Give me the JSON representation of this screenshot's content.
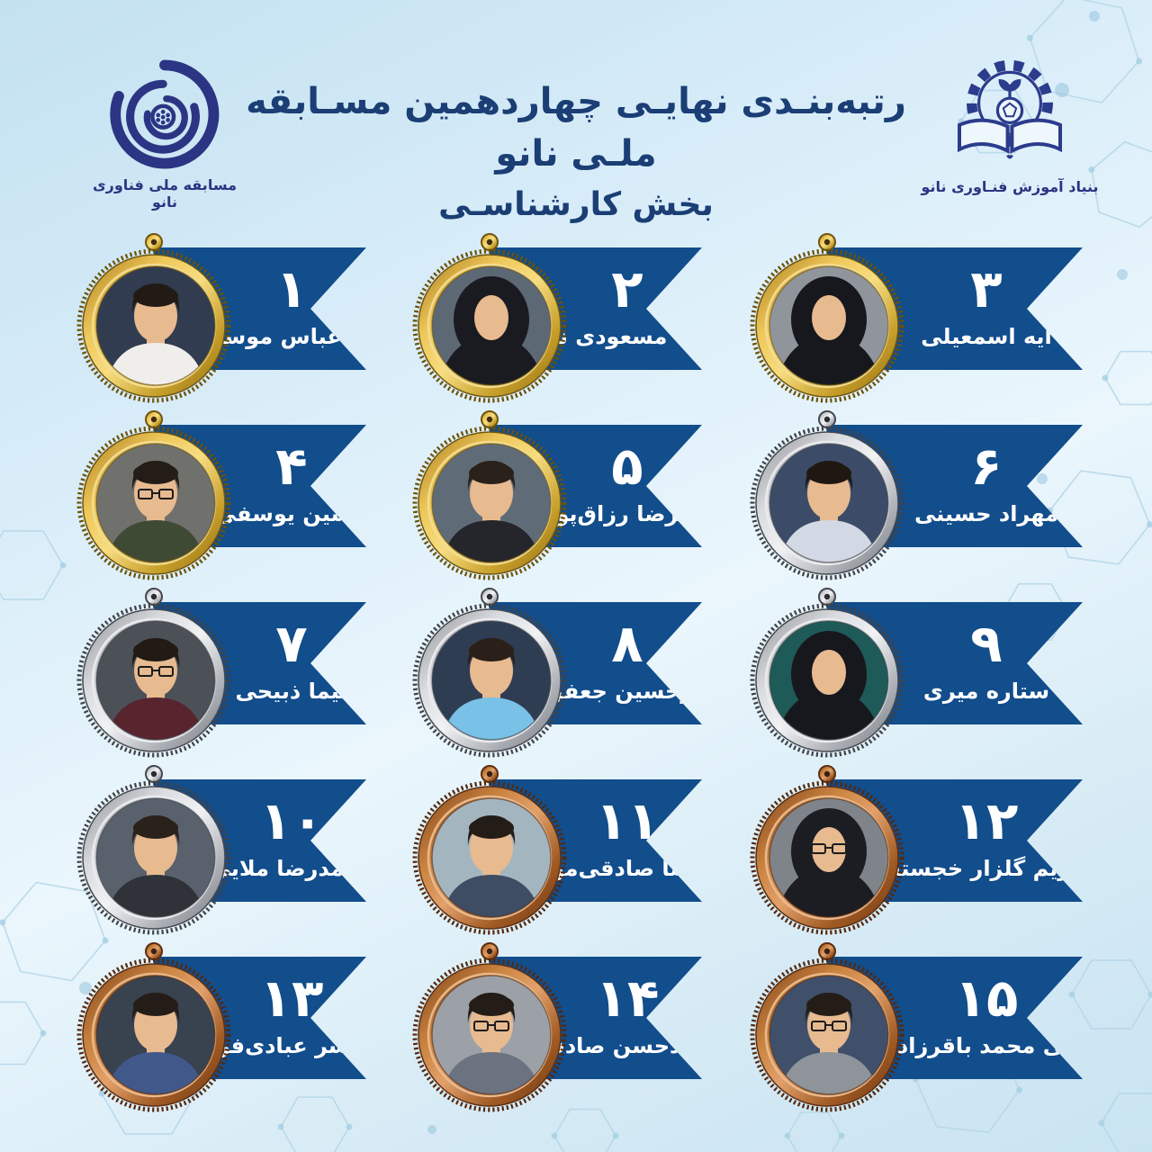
{
  "header": {
    "title_line1": "رتبه‌بنـدی نهایـی چهاردهمین مسـابقه ملـی نانو",
    "title_line2": "بخش کارشناسـی",
    "left_logo_caption": "مسابقه ملی فناوری نانو",
    "right_logo_caption": "بنیاد آموزش فنـاوری نانو"
  },
  "colors": {
    "ribbon": "#124d8c",
    "title": "#1b3e75",
    "gold": "#e3b341",
    "silver": "#cfd2d7",
    "bronze": "#c07a45",
    "background": "#d7ecf7"
  },
  "entries": [
    {
      "rank": 1,
      "rank_fa": "۱",
      "name_fa": "سید عباس موسوی",
      "medal": "gold",
      "avatar": {
        "figure": "man",
        "bg": "#323c50",
        "shirt": "#efeeea",
        "hair": "#221a14",
        "glasses": false
      }
    },
    {
      "rank": 2,
      "rank_fa": "۲",
      "name_fa": "رومینا مسعودی نسب",
      "medal": "gold",
      "avatar": {
        "figure": "woman-hijab",
        "bg": "#5d6875",
        "shirt": "#1a1b20",
        "hair": "#1a1b20",
        "glasses": false
      }
    },
    {
      "rank": 3,
      "rank_fa": "۳",
      "name_fa": "آیه اسمعیلی",
      "medal": "gold",
      "avatar": {
        "figure": "woman-hijab",
        "bg": "#8f959b",
        "shirt": "#17181d",
        "hair": "#17181d",
        "glasses": false
      }
    },
    {
      "rank": 4,
      "rank_fa": "۴",
      "name_fa": "حسین یوسفی",
      "medal": "gold",
      "avatar": {
        "figure": "man",
        "bg": "#70706c",
        "shirt": "#3e4a34",
        "hair": "#241c16",
        "glasses": true
      }
    },
    {
      "rank": 5,
      "rank_fa": "۵",
      "name_fa": "علیرضا رزاق‌پور",
      "medal": "gold",
      "avatar": {
        "figure": "man",
        "bg": "#5f6c78",
        "shirt": "#24262b",
        "hair": "#2a211a",
        "glasses": false
      }
    },
    {
      "rank": 6,
      "rank_fa": "۶",
      "name_fa": "مهراد حسینی",
      "medal": "silver",
      "avatar": {
        "figure": "man",
        "bg": "#3c4c68",
        "shirt": "#d3d9e4",
        "hair": "#1f1812",
        "glasses": false
      }
    },
    {
      "rank": 7,
      "rank_fa": "۷",
      "name_fa": "نیما ذبیحی",
      "medal": "silver",
      "avatar": {
        "figure": "man",
        "bg": "#4c5158",
        "shirt": "#58242e",
        "hair": "#211a15",
        "glasses": true
      }
    },
    {
      "rank": 8,
      "rank_fa": "۸",
      "name_fa": "امیرحسین جعفری",
      "medal": "silver",
      "avatar": {
        "figure": "man",
        "bg": "#2f3d53",
        "shirt": "#79c1e6",
        "hair": "#2b2019",
        "glasses": false
      }
    },
    {
      "rank": 9,
      "rank_fa": "۹",
      "name_fa": "ستاره میری",
      "medal": "silver",
      "avatar": {
        "figure": "woman-hijab",
        "bg": "#1e5a57",
        "shirt": "#17181d",
        "hair": "#17181d",
        "glasses": false
      }
    },
    {
      "rank": 10,
      "rank_fa": "۱۰",
      "name_fa": "محمدرضا ملایی",
      "medal": "silver",
      "avatar": {
        "figure": "man",
        "bg": "#58616c",
        "shirt": "#2f3339",
        "hair": "#2a211b",
        "glasses": false
      }
    },
    {
      "rank": 11,
      "rank_fa": "۱۱",
      "name_fa": "امیررضا صادقی‌موسی",
      "medal": "bronze",
      "avatar": {
        "figure": "man",
        "bg": "#a3b5bf",
        "shirt": "#3e4c64",
        "hair": "#241c16",
        "glasses": false
      }
    },
    {
      "rank": 12,
      "rank_fa": "۱۲",
      "name_fa": "مریم گلزار خجسته",
      "medal": "bronze",
      "avatar": {
        "figure": "woman-hijab",
        "bg": "#7e8489",
        "shirt": "#1c1d22",
        "hair": "#1c1d22",
        "glasses": true
      }
    },
    {
      "rank": 13,
      "rank_fa": "۱۳",
      "name_fa": "یاسر عبادی‌فر",
      "medal": "bronze",
      "avatar": {
        "figure": "man",
        "bg": "#39424f",
        "shirt": "#41598a",
        "hair": "#241d17",
        "glasses": false
      }
    },
    {
      "rank": 14,
      "rank_fa": "۱۴",
      "name_fa": "محمدحسن صادقی",
      "medal": "bronze",
      "avatar": {
        "figure": "man",
        "bg": "#9ba1a7",
        "shirt": "#6b7380",
        "hair": "#241d17",
        "glasses": true
      }
    },
    {
      "rank": 15,
      "rank_fa": "۱۵",
      "name_fa": "علی محمد باقرزاده",
      "medal": "bronze",
      "avatar": {
        "figure": "man",
        "bg": "#40506a",
        "shirt": "#8e949a",
        "hair": "#241d17",
        "glasses": true
      }
    }
  ]
}
